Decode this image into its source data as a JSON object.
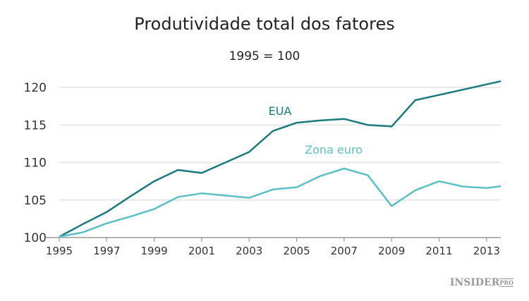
{
  "chart_data": {
    "type": "line",
    "title": "Produtividade total dos fatores",
    "subtitle": "1995 = 100",
    "xlabel": "",
    "ylabel": "",
    "xlim": [
      1995,
      2013.6
    ],
    "ylim": [
      100,
      121
    ],
    "grid": true,
    "x": [
      1995,
      1996,
      1997,
      1998,
      1999,
      2000,
      2001,
      2002,
      2003,
      2004,
      2005,
      2006,
      2007,
      2008,
      2009,
      2010,
      2011,
      2012,
      2013,
      2014
    ],
    "xticks": [
      "1995",
      "1997",
      "1999",
      "2001",
      "2003",
      "2005",
      "2007",
      "2009",
      "2011",
      "2013"
    ],
    "yticks": [
      "100",
      "105",
      "110",
      "115",
      "120"
    ],
    "series": [
      {
        "name": "EUA",
        "color": "#1a7a7c",
        "values": [
          100.1,
          101.8,
          103.4,
          105.5,
          107.5,
          109.0,
          108.6,
          110.0,
          111.4,
          114.2,
          115.3,
          115.6,
          115.8,
          115.0,
          114.8,
          118.3,
          119.0,
          119.7,
          120.4,
          121.1
        ]
      },
      {
        "name": "Zona euro",
        "color": "#5bbfc6",
        "values": [
          100.1,
          100.7,
          101.9,
          102.8,
          103.8,
          105.4,
          105.9,
          105.6,
          105.3,
          106.4,
          106.7,
          108.2,
          109.2,
          108.3,
          104.2,
          106.3,
          107.5,
          106.8,
          106.6,
          107.0
        ]
      }
    ]
  },
  "logo": {
    "main": "INSIDER",
    "sup": "PRO"
  }
}
